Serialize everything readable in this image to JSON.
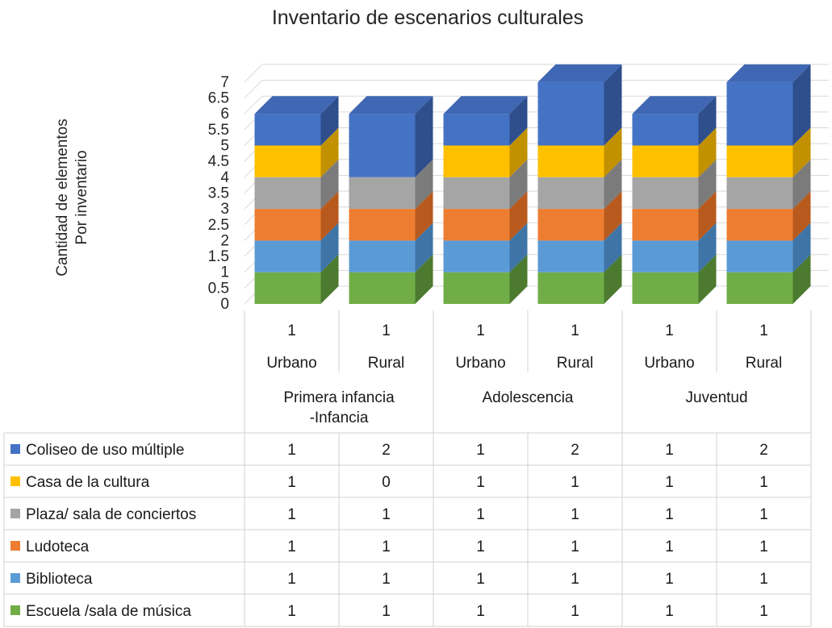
{
  "chart_data": {
    "type": "bar",
    "stacked": true,
    "three_d": true,
    "title": "Inventario de escenarios culturales",
    "ylabel": [
      "Cantidad de elementos",
      "Por inventario"
    ],
    "ylim": [
      0,
      7
    ],
    "yticks": [
      "0",
      "0.5",
      "1",
      "1.5",
      "2",
      "2.5",
      "3",
      "3.5",
      "4",
      "4.5",
      "5",
      "5.5",
      "6",
      "6.5",
      "7"
    ],
    "grid": true,
    "legend": "data-table",
    "categories": [
      {
        "level1": "1",
        "level2": "Urbano",
        "group": "Primera infancia -Infancia"
      },
      {
        "level1": "1",
        "level2": "Rural",
        "group": "Primera infancia -Infancia"
      },
      {
        "level1": "1",
        "level2": "Urbano",
        "group": "Adolescencia"
      },
      {
        "level1": "1",
        "level2": "Rural",
        "group": "Adolescencia"
      },
      {
        "level1": "1",
        "level2": "Urbano",
        "group": "Juventud"
      },
      {
        "level1": "1",
        "level2": "Rural",
        "group": "Juventud"
      }
    ],
    "groups": [
      {
        "label_lines": [
          "Primera infancia",
          "-Infancia"
        ],
        "span": 2
      },
      {
        "label_lines": [
          "Adolescencia"
        ],
        "span": 2
      },
      {
        "label_lines": [
          "Juventud"
        ],
        "span": 2
      }
    ],
    "series": [
      {
        "name": "Escuela /sala de música",
        "color": "#70ad47",
        "side": "#4c7a2f",
        "top": "#8cc46a",
        "values": [
          1,
          1,
          1,
          1,
          1,
          1
        ]
      },
      {
        "name": "Biblioteca",
        "color": "#5b9bd5",
        "side": "#3f74a6",
        "top": "#7cb2e2",
        "values": [
          1,
          1,
          1,
          1,
          1,
          1
        ]
      },
      {
        "name": "Ludoteca",
        "color": "#ed7d31",
        "side": "#b85a1e",
        "top": "#f39a5e",
        "values": [
          1,
          1,
          1,
          1,
          1,
          1
        ]
      },
      {
        "name": "Plaza/ sala de conciertos",
        "color": "#a5a5a5",
        "side": "#7b7b7b",
        "top": "#bdbdbd",
        "values": [
          1,
          1,
          1,
          1,
          1,
          1
        ]
      },
      {
        "name": "Casa de la cultura",
        "color": "#ffc000",
        "side": "#c29100",
        "top": "#ffd24d",
        "values": [
          1,
          0,
          1,
          1,
          1,
          1
        ]
      },
      {
        "name": "Coliseo de uso múltiple",
        "color": "#4472c4",
        "side": "#2e4f8c",
        "top": "#3f67b3",
        "values": [
          1,
          2,
          1,
          2,
          1,
          2
        ]
      }
    ]
  }
}
